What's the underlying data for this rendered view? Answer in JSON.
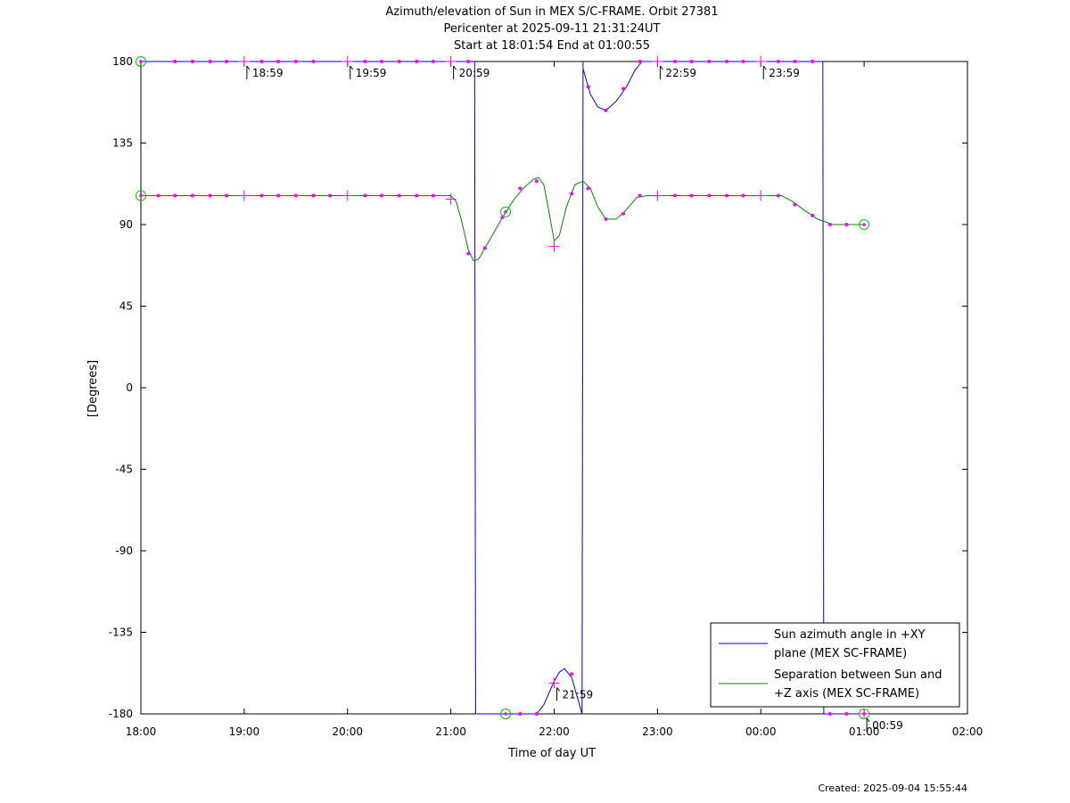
{
  "chart_data": {
    "type": "line",
    "title": [
      "Azimuth/elevation of Sun in MEX S/C-FRAME.  Orbit 27381",
      "Pericenter at 2025-09-11 21:31:24UT",
      "Start at 18:01:54 End at 01:00:55"
    ],
    "xlabel": "Time of day UT",
    "ylabel": "[Degrees]",
    "xlim": [
      18,
      26
    ],
    "ylim": [
      -180,
      180
    ],
    "x_ticks": [
      {
        "v": 18,
        "label": "18:00"
      },
      {
        "v": 19,
        "label": "19:00"
      },
      {
        "v": 20,
        "label": "20:00"
      },
      {
        "v": 21,
        "label": "21:00"
      },
      {
        "v": 22,
        "label": "22:00"
      },
      {
        "v": 23,
        "label": "23:00"
      },
      {
        "v": 24,
        "label": "00:00"
      },
      {
        "v": 25,
        "label": "01:00"
      },
      {
        "v": 26,
        "label": "02:00"
      }
    ],
    "y_ticks": [
      {
        "v": 180,
        "label": "180"
      },
      {
        "v": 135,
        "label": "135"
      },
      {
        "v": 90,
        "label": "90"
      },
      {
        "v": 45,
        "label": "45"
      },
      {
        "v": 0,
        "label": "0"
      },
      {
        "v": -45,
        "label": "-45"
      },
      {
        "v": -90,
        "label": "-90"
      },
      {
        "v": -135,
        "label": "-135"
      },
      {
        "v": -180,
        "label": "-180"
      }
    ],
    "legend_position": "bottom-right",
    "series": [
      {
        "name": "Sun azimuth angle in +XY plane (MEX SC-FRAME)",
        "legend_lines": [
          "Sun azimuth angle in +XY",
          "plane (MEX SC-FRAME)"
        ],
        "color": "#0000cc",
        "segments": [
          [
            [
              18.0,
              180
            ],
            [
              21.23,
              180
            ],
            [
              21.24,
              -180
            ]
          ],
          [
            [
              21.24,
              -180
            ],
            [
              21.5,
              -180
            ],
            [
              21.83,
              -180
            ],
            [
              21.9,
              -175
            ],
            [
              22.0,
              -162
            ],
            [
              22.05,
              -157
            ],
            [
              22.1,
              -155
            ],
            [
              22.17,
              -160
            ],
            [
              22.22,
              -170
            ],
            [
              22.27,
              -180
            ],
            [
              22.28,
              180
            ]
          ],
          [
            [
              22.28,
              176
            ],
            [
              22.35,
              162
            ],
            [
              22.42,
              155
            ],
            [
              22.5,
              153
            ],
            [
              22.6,
              158
            ],
            [
              22.7,
              166
            ],
            [
              22.78,
              175
            ],
            [
              22.85,
              180
            ],
            [
              24.6,
              180
            ],
            [
              24.61,
              -180
            ],
            [
              25.0,
              -180
            ]
          ]
        ]
      },
      {
        "name": "Separation between Sun and +Z axis (MEX SC-FRAME)",
        "legend_lines": [
          "Separation between Sun and",
          "+Z axis (MEX SC-FRAME)"
        ],
        "color": "#008800",
        "segments": [
          [
            [
              18.0,
              106
            ],
            [
              21.0,
              106
            ],
            [
              21.05,
              103
            ],
            [
              21.1,
              93
            ],
            [
              21.17,
              76
            ],
            [
              21.22,
              70
            ],
            [
              21.27,
              71
            ],
            [
              21.33,
              77
            ],
            [
              21.42,
              86
            ],
            [
              21.5,
              94
            ],
            [
              21.6,
              103
            ],
            [
              21.7,
              110
            ],
            [
              21.8,
              115
            ],
            [
              21.85,
              116
            ],
            [
              21.9,
              112
            ],
            [
              21.95,
              97
            ],
            [
              22.0,
              81
            ],
            [
              22.05,
              84
            ],
            [
              22.12,
              100
            ],
            [
              22.2,
              112
            ],
            [
              22.28,
              114
            ],
            [
              22.35,
              110
            ],
            [
              22.42,
              100
            ],
            [
              22.5,
              93
            ],
            [
              22.6,
              93
            ],
            [
              22.68,
              97
            ],
            [
              22.8,
              105
            ],
            [
              22.9,
              106
            ],
            [
              24.2,
              106
            ],
            [
              24.3,
              103
            ],
            [
              24.42,
              98
            ],
            [
              24.55,
              93
            ],
            [
              24.7,
              90
            ],
            [
              25.0,
              90
            ]
          ]
        ]
      }
    ],
    "markers": {
      "dots": [
        [
          18.33,
          180
        ],
        [
          18.5,
          180
        ],
        [
          18.67,
          180
        ],
        [
          18.83,
          180
        ],
        [
          19.17,
          180
        ],
        [
          19.33,
          180
        ],
        [
          19.5,
          180
        ],
        [
          19.67,
          180
        ],
        [
          20.17,
          180
        ],
        [
          20.33,
          180
        ],
        [
          20.5,
          180
        ],
        [
          20.67,
          180
        ],
        [
          20.83,
          180
        ],
        [
          21.17,
          180
        ],
        [
          22.33,
          166
        ],
        [
          22.5,
          153
        ],
        [
          22.67,
          165
        ],
        [
          22.83,
          180
        ],
        [
          23.17,
          180
        ],
        [
          23.33,
          180
        ],
        [
          23.5,
          180
        ],
        [
          23.67,
          180
        ],
        [
          23.83,
          180
        ],
        [
          24.17,
          180
        ],
        [
          24.33,
          180
        ],
        [
          24.5,
          180
        ],
        [
          21.67,
          -180
        ],
        [
          21.83,
          -180
        ],
        [
          22.17,
          -158
        ],
        [
          24.67,
          -180
        ],
        [
          24.83,
          -180
        ],
        [
          18.17,
          106
        ],
        [
          18.33,
          106
        ],
        [
          18.5,
          106
        ],
        [
          18.67,
          106
        ],
        [
          18.83,
          106
        ],
        [
          19.17,
          106
        ],
        [
          19.33,
          106
        ],
        [
          19.5,
          106
        ],
        [
          19.67,
          106
        ],
        [
          19.83,
          106
        ],
        [
          20.17,
          106
        ],
        [
          20.33,
          106
        ],
        [
          20.5,
          106
        ],
        [
          20.67,
          106
        ],
        [
          20.83,
          106
        ],
        [
          21.17,
          74
        ],
        [
          21.33,
          77
        ],
        [
          21.5,
          94
        ],
        [
          21.67,
          110
        ],
        [
          21.83,
          114
        ],
        [
          22.17,
          107
        ],
        [
          22.33,
          110
        ],
        [
          22.5,
          93
        ],
        [
          22.67,
          96
        ],
        [
          22.83,
          106
        ],
        [
          23.17,
          106
        ],
        [
          23.33,
          106
        ],
        [
          23.5,
          106
        ],
        [
          23.67,
          106
        ],
        [
          23.83,
          106
        ],
        [
          24.17,
          106
        ],
        [
          24.33,
          101
        ],
        [
          24.5,
          95
        ],
        [
          24.67,
          90
        ],
        [
          24.83,
          90
        ]
      ],
      "plus": [
        [
          19.0,
          180
        ],
        [
          20.0,
          180
        ],
        [
          21.0,
          180
        ],
        [
          23.0,
          180
        ],
        [
          24.0,
          180
        ],
        [
          22.0,
          -163
        ],
        [
          25.0,
          -180
        ],
        [
          19.0,
          106
        ],
        [
          20.0,
          106
        ],
        [
          21.0,
          104
        ],
        [
          22.0,
          78
        ],
        [
          23.0,
          106
        ],
        [
          24.0,
          106
        ]
      ],
      "circles": [
        [
          18.0,
          180
        ],
        [
          18.0,
          106
        ],
        [
          21.53,
          97
        ],
        [
          21.53,
          -180
        ],
        [
          25.0,
          90
        ],
        [
          25.0,
          -180
        ]
      ]
    },
    "annotations": [
      {
        "x": 19.0,
        "y": 180,
        "label": "18:59"
      },
      {
        "x": 20.0,
        "y": 180,
        "label": "19:59"
      },
      {
        "x": 21.0,
        "y": 180,
        "label": "20:59"
      },
      {
        "x": 22.0,
        "y": -163,
        "label": "21:59"
      },
      {
        "x": 23.0,
        "y": 180,
        "label": "22:59"
      },
      {
        "x": 24.0,
        "y": 180,
        "label": "23:59"
      },
      {
        "x": 25.0,
        "y": -180,
        "label": "00:59"
      }
    ]
  },
  "footer": {
    "created": "Created: 2025-09-04 15:55:44"
  },
  "colors": {
    "marker": "#ff00ff",
    "circle": "#00cc00"
  }
}
